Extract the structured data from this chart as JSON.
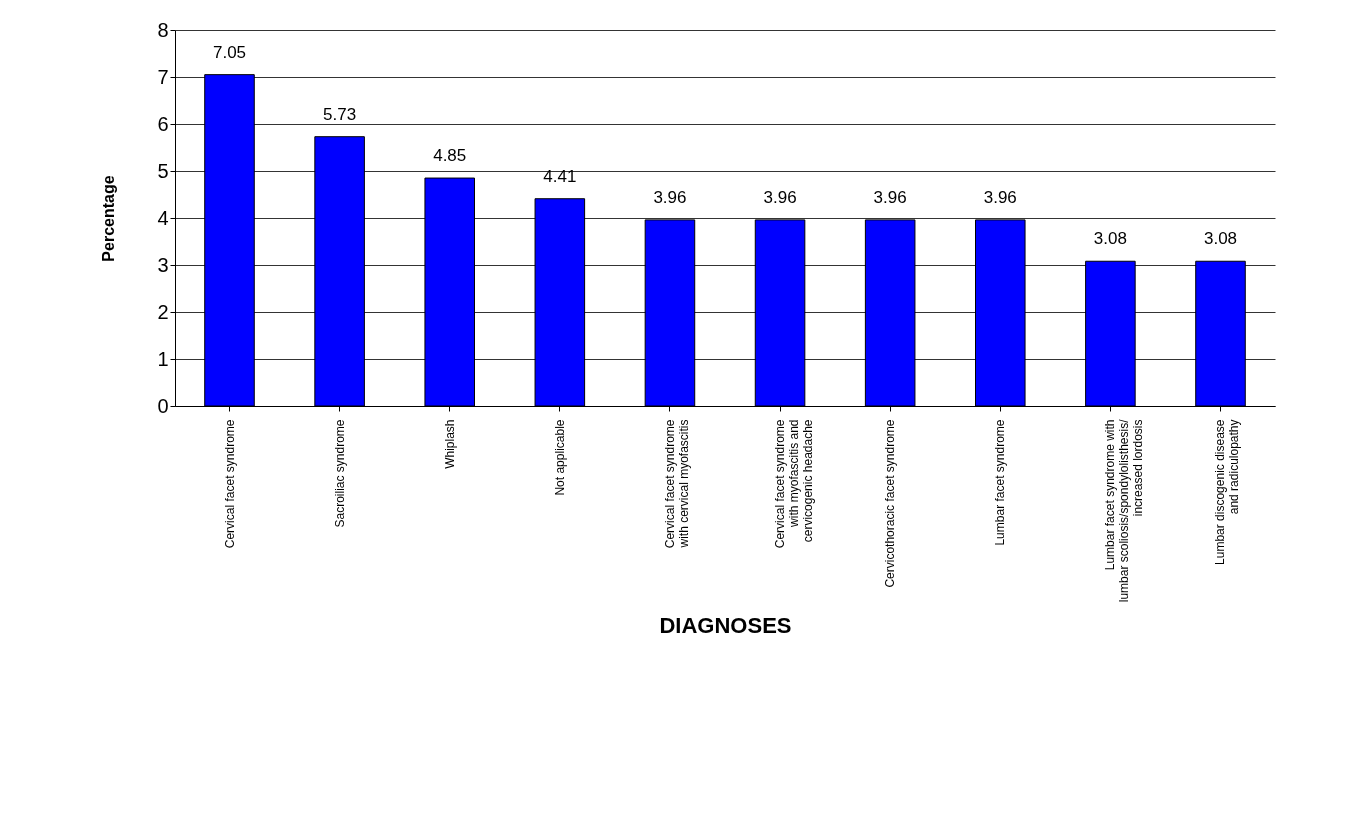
{
  "chart_data": {
    "type": "bar",
    "xlabel": "DIAGNOSES",
    "ylabel": "Percentage",
    "categories": [
      "Cervical facet syndrome",
      "Sacroiliac syndrome",
      "Whiplash",
      "Not applicable",
      "Cervical facet syndrome\nwith cervical myofascitis",
      "Cervical facet syndrome\nwith myofascitis and\ncervicogenic headache",
      "Cervicothoracic facet syndrome",
      "Lumbar facet syndrome",
      "Lumbar facet syndrome with\nlumbar scoliosis/spondylolisthesis/\nincreased lordosis",
      "Lumbar discogenic disease\nand radiculopathy"
    ],
    "values": [
      7.05,
      5.73,
      4.85,
      4.41,
      3.96,
      3.96,
      3.96,
      3.96,
      3.08,
      3.08
    ],
    "color": "#0000ff",
    "ylim": [
      0,
      8
    ],
    "yticks": [
      0,
      1,
      2,
      3,
      4,
      5,
      6,
      7,
      8
    ],
    "grid": "y",
    "data_labels": true
  }
}
